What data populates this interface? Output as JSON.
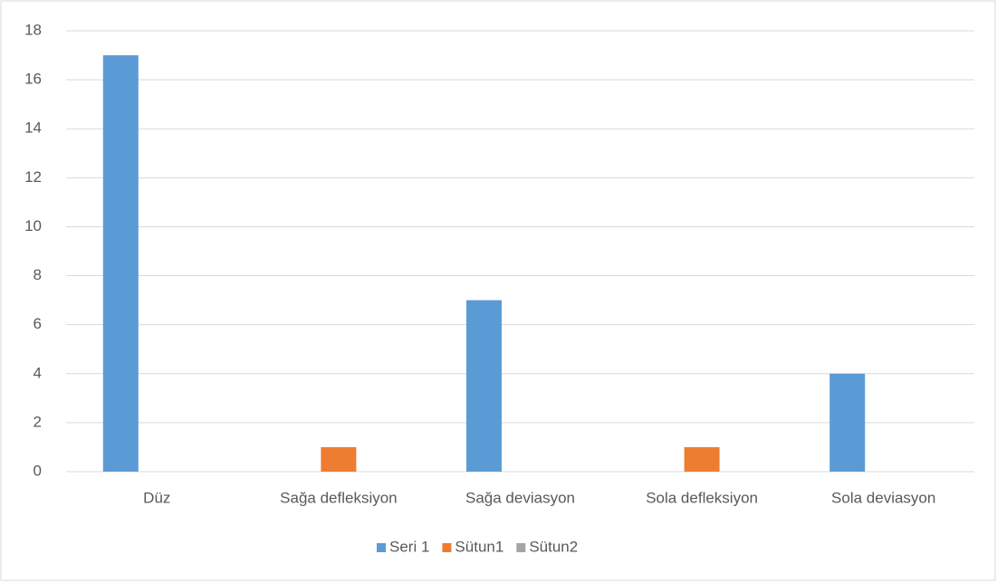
{
  "chart_data": {
    "type": "bar",
    "categories": [
      "Düz",
      "Sağa defleksiyon",
      "Sağa deviasyon",
      "Sola defleksiyon",
      "Sola deviasyon"
    ],
    "series": [
      {
        "name": "Seri 1",
        "color": "#5b9bd5",
        "values": [
          17,
          null,
          7,
          null,
          4
        ]
      },
      {
        "name": "Sütun1",
        "color": "#ed7d31",
        "values": [
          null,
          1,
          null,
          1,
          null
        ]
      },
      {
        "name": "Sütun2",
        "color": "#a5a5a5",
        "values": [
          null,
          null,
          null,
          null,
          null
        ]
      }
    ],
    "ylim": [
      0,
      18
    ],
    "yticks": [
      0,
      2,
      4,
      6,
      8,
      10,
      12,
      14,
      16,
      18
    ],
    "grid": true,
    "legend": "bottom"
  }
}
